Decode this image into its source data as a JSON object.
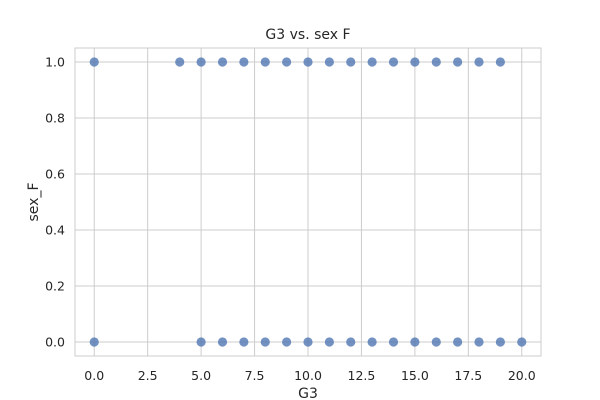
{
  "chart_data": {
    "type": "scatter",
    "title": "G3 vs. sex F",
    "xlabel": "G3",
    "ylabel": "sex_F",
    "xlim": [
      -0.9,
      20.9
    ],
    "ylim": [
      -0.05,
      1.05
    ],
    "x_ticks": [
      0.0,
      2.5,
      5.0,
      7.5,
      10.0,
      12.5,
      15.0,
      17.5,
      20.0
    ],
    "x_tick_labels": [
      "0.0",
      "2.5",
      "5.0",
      "7.5",
      "10.0",
      "12.5",
      "15.0",
      "17.5",
      "20.0"
    ],
    "y_ticks": [
      0.0,
      0.2,
      0.4,
      0.6,
      0.8,
      1.0
    ],
    "y_tick_labels": [
      "0.0",
      "0.2",
      "0.4",
      "0.6",
      "0.8",
      "1.0"
    ],
    "grid": true,
    "point_color": "#4c72b0",
    "points": [
      {
        "x": 0,
        "y": 1
      },
      {
        "x": 4,
        "y": 1
      },
      {
        "x": 5,
        "y": 1
      },
      {
        "x": 6,
        "y": 1
      },
      {
        "x": 7,
        "y": 1
      },
      {
        "x": 8,
        "y": 1
      },
      {
        "x": 9,
        "y": 1
      },
      {
        "x": 10,
        "y": 1
      },
      {
        "x": 11,
        "y": 1
      },
      {
        "x": 12,
        "y": 1
      },
      {
        "x": 13,
        "y": 1
      },
      {
        "x": 14,
        "y": 1
      },
      {
        "x": 15,
        "y": 1
      },
      {
        "x": 16,
        "y": 1
      },
      {
        "x": 17,
        "y": 1
      },
      {
        "x": 18,
        "y": 1
      },
      {
        "x": 19,
        "y": 1
      },
      {
        "x": 0,
        "y": 0
      },
      {
        "x": 5,
        "y": 0
      },
      {
        "x": 6,
        "y": 0
      },
      {
        "x": 7,
        "y": 0
      },
      {
        "x": 8,
        "y": 0
      },
      {
        "x": 9,
        "y": 0
      },
      {
        "x": 10,
        "y": 0
      },
      {
        "x": 11,
        "y": 0
      },
      {
        "x": 12,
        "y": 0
      },
      {
        "x": 13,
        "y": 0
      },
      {
        "x": 14,
        "y": 0
      },
      {
        "x": 15,
        "y": 0
      },
      {
        "x": 16,
        "y": 0
      },
      {
        "x": 17,
        "y": 0
      },
      {
        "x": 18,
        "y": 0
      },
      {
        "x": 19,
        "y": 0
      },
      {
        "x": 20,
        "y": 0
      }
    ]
  }
}
